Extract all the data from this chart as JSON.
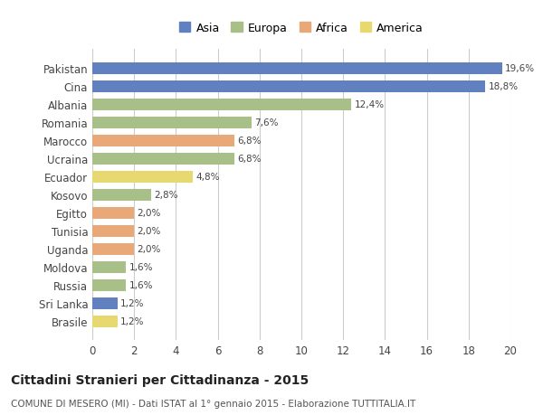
{
  "countries": [
    "Pakistan",
    "Cina",
    "Albania",
    "Romania",
    "Marocco",
    "Ucraina",
    "Ecuador",
    "Kosovo",
    "Egitto",
    "Tunisia",
    "Uganda",
    "Moldova",
    "Russia",
    "Sri Lanka",
    "Brasile"
  ],
  "values": [
    19.6,
    18.8,
    12.4,
    7.6,
    6.8,
    6.8,
    4.8,
    2.8,
    2.0,
    2.0,
    2.0,
    1.6,
    1.6,
    1.2,
    1.2
  ],
  "continents": [
    "Asia",
    "Asia",
    "Europa",
    "Europa",
    "Africa",
    "Europa",
    "America",
    "Europa",
    "Africa",
    "Africa",
    "Africa",
    "Europa",
    "Europa",
    "Asia",
    "America"
  ],
  "colors": {
    "Asia": "#6080c0",
    "Europa": "#a8bf88",
    "Africa": "#e8a878",
    "America": "#e8d870"
  },
  "legend_order": [
    "Asia",
    "Europa",
    "Africa",
    "America"
  ],
  "title": "Cittadini Stranieri per Cittadinanza - 2015",
  "subtitle": "COMUNE DI MESERO (MI) - Dati ISTAT al 1° gennaio 2015 - Elaborazione TUTTITALIA.IT",
  "xlim": [
    0,
    20
  ],
  "xticks": [
    0,
    2,
    4,
    6,
    8,
    10,
    12,
    14,
    16,
    18,
    20
  ],
  "background_color": "#ffffff",
  "grid_color": "#cccccc"
}
